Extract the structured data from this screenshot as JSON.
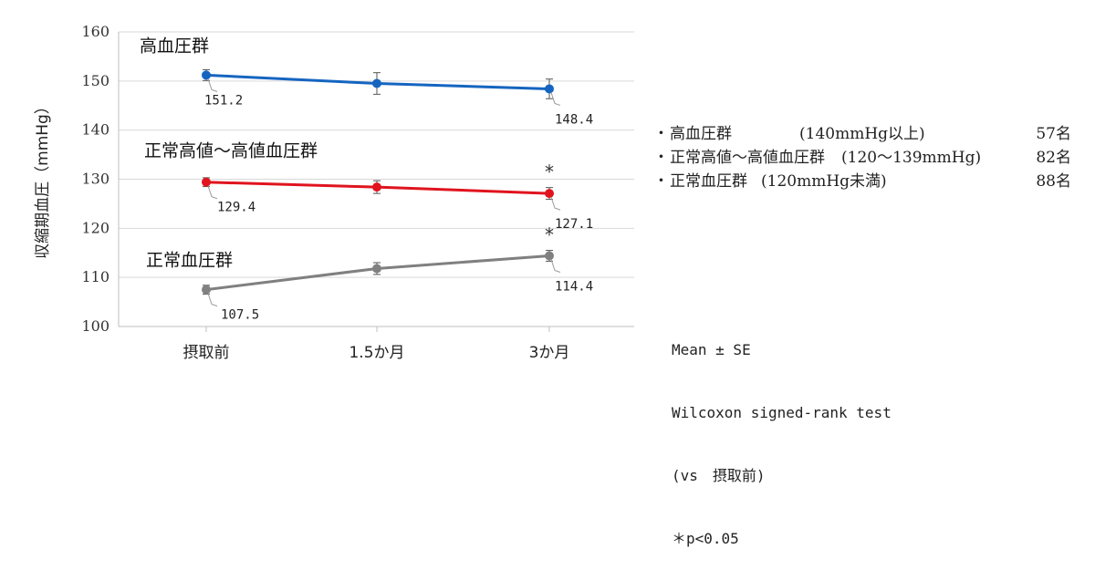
{
  "chart_data": {
    "type": "line",
    "ylabel": "収縮期血圧（mmHg）",
    "ylim": [
      100,
      160
    ],
    "yticks": [
      100,
      110,
      120,
      130,
      140,
      150,
      160
    ],
    "categories": [
      "摂取前",
      "1.5か月",
      "3か月"
    ],
    "grid": "horizontal",
    "series": [
      {
        "name": "高血圧群",
        "color": "#1565c0",
        "values": [
          151.2,
          149.5,
          148.4
        ],
        "errors": [
          1.1,
          2.2,
          2.0
        ],
        "labels": [
          "151.2",
          "",
          "148.4"
        ],
        "significant": [
          false,
          false,
          false
        ]
      },
      {
        "name": "正常高値〜高値血圧群",
        "color": "#e0141e",
        "values": [
          129.4,
          128.4,
          127.1
        ],
        "errors": [
          0.9,
          1.3,
          1.2
        ],
        "labels": [
          "129.4",
          "",
          "127.1"
        ],
        "significant": [
          false,
          false,
          true
        ]
      },
      {
        "name": "正常血圧群",
        "color": "#808080",
        "values": [
          107.5,
          111.8,
          114.4
        ],
        "errors": [
          0.9,
          1.2,
          1.1
        ],
        "labels": [
          "107.5",
          "",
          "114.4"
        ],
        "significant": [
          false,
          false,
          true
        ]
      }
    ],
    "significance_mark": "*"
  },
  "legend": [
    {
      "bullet": "・",
      "name": "高血圧群",
      "criterion": "(140mmHg以上)",
      "n": "57名"
    },
    {
      "bullet": "・",
      "name": "正常高値〜高値血圧群",
      "criterion": "(120〜139mmHg)",
      "n": "82名"
    },
    {
      "bullet": "・",
      "name": "正常血圧群",
      "criterion": "(120mmHg未満)",
      "n": "88名"
    }
  ],
  "notes": {
    "stat": "Mean ± SE",
    "test": "Wilcoxon signed-rank test",
    "comparison": "(vs　摂取前)",
    "significance": "＊p<0.05"
  }
}
